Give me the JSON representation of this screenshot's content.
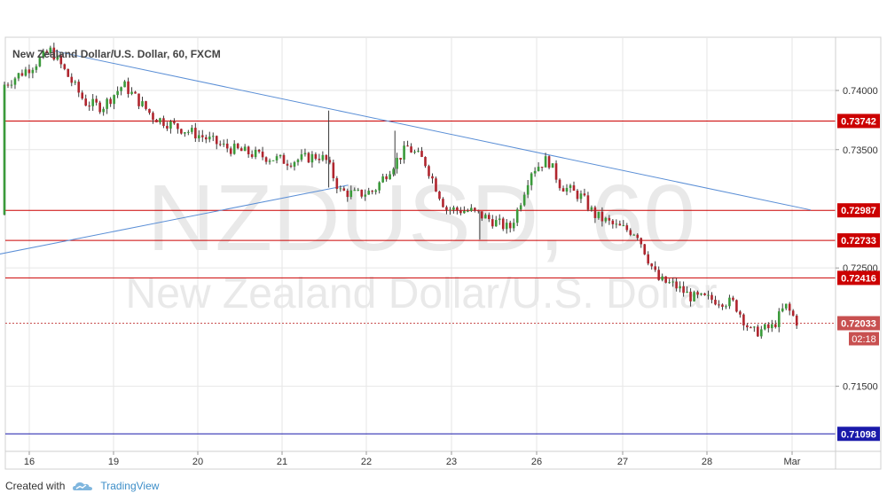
{
  "chart_data": {
    "type": "candlestick",
    "title": "New Zealand Dollar/U.S. Dollar, 60, FXCM",
    "watermark_symbol": "NZDUSD, 60",
    "watermark_name": "New Zealand Dollar/U.S. Dollar",
    "x_ticks": [
      "16",
      "19",
      "20",
      "21",
      "22",
      "23",
      "26",
      "27",
      "28",
      "Mar"
    ],
    "y_ticks": [
      "0.74000",
      "0.73500",
      "0.72500",
      "0.71500"
    ],
    "ylim": [
      0.7095,
      0.7445
    ],
    "grid": true,
    "start_price": 0.7295,
    "current_price": "0.72033",
    "countdown": "02:18",
    "horizontal_levels": [
      {
        "label": "0.73742",
        "value": 0.73742,
        "color": "#cc0000"
      },
      {
        "label": "0.72987",
        "value": 0.72987,
        "color": "#cc0000"
      },
      {
        "label": "0.72733",
        "value": 0.72733,
        "color": "#cc0000"
      },
      {
        "label": "0.72416",
        "value": 0.72416,
        "color": "#cc0000"
      },
      {
        "label": "0.71098",
        "value": 0.71098,
        "color": "#1a1aaa"
      }
    ],
    "trendlines": [
      {
        "name": "descending resistance",
        "from_day": 0.55,
        "from": 0.7434,
        "to_day": 9.5,
        "to": 0.7299
      },
      {
        "name": "ascending support",
        "from_day": -0.25,
        "from": 0.7259,
        "to_day": 4.05,
        "to": 0.732
      }
    ],
    "price_path": [
      {
        "day": 0.0,
        "price": 0.7405
      },
      {
        "day": 0.35,
        "price": 0.7422
      },
      {
        "day": 0.55,
        "price": 0.7434
      },
      {
        "day": 0.95,
        "price": 0.739
      },
      {
        "day": 1.15,
        "price": 0.7386
      },
      {
        "day": 1.4,
        "price": 0.7405
      },
      {
        "day": 1.75,
        "price": 0.7378
      },
      {
        "day": 2.0,
        "price": 0.737
      },
      {
        "day": 2.3,
        "price": 0.7362
      },
      {
        "day": 2.6,
        "price": 0.7352
      },
      {
        "day": 3.0,
        "price": 0.7345
      },
      {
        "day": 3.35,
        "price": 0.734
      },
      {
        "day": 3.7,
        "price": 0.7345
      },
      {
        "day": 3.8,
        "price": 0.734
      },
      {
        "day": 3.95,
        "price": 0.7315
      },
      {
        "day": 4.15,
        "price": 0.7312
      },
      {
        "day": 4.35,
        "price": 0.7315
      },
      {
        "day": 4.55,
        "price": 0.7335
      },
      {
        "day": 4.75,
        "price": 0.7352
      },
      {
        "day": 4.95,
        "price": 0.734
      },
      {
        "day": 5.2,
        "price": 0.73
      },
      {
        "day": 5.5,
        "price": 0.7298
      },
      {
        "day": 5.75,
        "price": 0.729
      },
      {
        "day": 5.95,
        "price": 0.7283
      },
      {
        "day": 6.05,
        "price": 0.73
      },
      {
        "day": 6.2,
        "price": 0.7332
      },
      {
        "day": 6.4,
        "price": 0.7342
      },
      {
        "day": 6.55,
        "price": 0.732
      },
      {
        "day": 6.8,
        "price": 0.731
      },
      {
        "day": 6.95,
        "price": 0.7295
      },
      {
        "day": 7.2,
        "price": 0.7285
      },
      {
        "day": 7.45,
        "price": 0.728
      },
      {
        "day": 7.6,
        "price": 0.7255
      },
      {
        "day": 7.7,
        "price": 0.724
      },
      {
        "day": 7.9,
        "price": 0.7235
      },
      {
        "day": 8.1,
        "price": 0.7225
      },
      {
        "day": 8.4,
        "price": 0.7223
      },
      {
        "day": 8.6,
        "price": 0.722
      },
      {
        "day": 8.8,
        "price": 0.7195
      },
      {
        "day": 9.05,
        "price": 0.72
      },
      {
        "day": 9.2,
        "price": 0.7218
      },
      {
        "day": 9.35,
        "price": 0.72033
      }
    ],
    "spikes": [
      {
        "day": 3.82,
        "high": 0.7383,
        "low": 0.7318
      },
      {
        "day": 4.6,
        "high": 0.7366,
        "low": 0.7328
      },
      {
        "day": 5.6,
        "high": 0.7298,
        "low": 0.7274
      }
    ],
    "colors": {
      "up": "#3a9a3a",
      "down": "#b0252e",
      "wick": "#3a3a3a",
      "grid": "#e6e6e6",
      "trend": "#5b8fd6",
      "current": "#c85050",
      "watermark": "#e9e9e9",
      "axis_text": "#333333"
    }
  },
  "footer": {
    "created_with": "Created with",
    "brand": "TradingView"
  }
}
